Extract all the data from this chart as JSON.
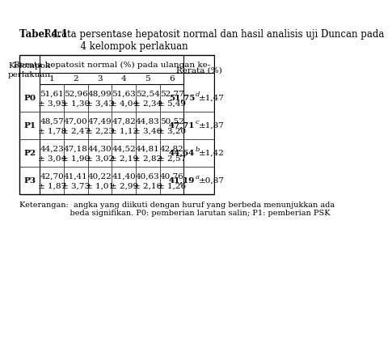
{
  "title_bold": "Tabel 4.1",
  "title_text": "  Rerata persentase hepatosit normal dan hasil analisis uji Duncan pada\n              4 kelompok perlakuan",
  "col_header_main": "Rerata hepatosit normal (%) pada ulangan ke-",
  "col_header_last": "Rerata (%)",
  "col_sub_headers": [
    "1",
    "2",
    "3",
    "4",
    "5",
    "6"
  ],
  "row_labels": [
    "P0",
    "P1",
    "P2",
    "P3"
  ],
  "row_header_label": [
    "Kelompok",
    "perlakuan"
  ],
  "data": [
    [
      "51,61\n± 3,95",
      "52,96\n± 1,30",
      "48,99\n± 3,43",
      "51,63\n± 4,04",
      "52,54\n± 2,34",
      "52,77\n± 5,49"
    ],
    [
      "48,57\n± 1,78",
      "47,00\n± 2,47",
      "47,49\n± 2,23",
      "47,82\n± 1,12",
      "44,83\n± 3,46",
      "50,52\n± 3,20"
    ],
    [
      "44,23\n± 3,04",
      "47,18\n± 1,90",
      "44,30\n± 3,02",
      "44,52\n± 2,19",
      "44,81\n± 2,82",
      "42,82\n± 2,57"
    ],
    [
      "42,70\n± 1,87",
      "41,41\n± 3,73",
      "40,22\n± 1,01",
      "41,40\n± 2,99",
      "40,63\n± 2,16",
      "40,76\n± 1,26"
    ]
  ],
  "rerata_values": [
    "51,75",
    "47,71",
    "44,64",
    "41,19"
  ],
  "rerata_superscripts": [
    "d",
    "c",
    "b",
    "a"
  ],
  "rerata_errors": [
    "±1,47",
    "±1,87",
    "±1,42",
    "±0,87"
  ],
  "keterangan": "Keterangan:  angka yang diikuti dengan huruf yang berbeda menunjukkan ada\n                    beda signifikan. P0: pemberian larutan salin; P1: pemberian PSK",
  "bg_color": "#ffffff",
  "text_color": "#000000",
  "font_size_table": 7.5,
  "font_size_title": 8.5,
  "font_size_keterangan": 7.0
}
